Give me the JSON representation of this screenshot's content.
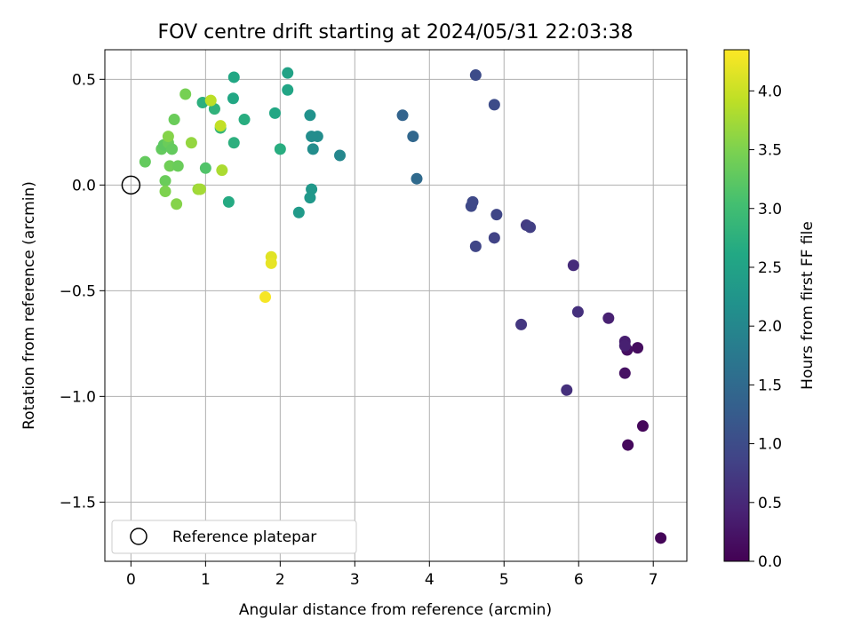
{
  "chart_data": {
    "type": "scatter",
    "title": "FOV centre drift starting at 2024/05/31 22:03:38",
    "xlabel": "Angular distance from reference (arcmin)",
    "ylabel": "Rotation from reference (arcmin)",
    "xlim": [
      -0.35,
      7.45
    ],
    "ylim": [
      -1.78,
      0.64
    ],
    "xticks": [
      0,
      1,
      2,
      3,
      4,
      5,
      6,
      7
    ],
    "yticks": [
      0.5,
      0.0,
      -0.5,
      -1.0,
      -1.5
    ],
    "xtick_labels": [
      "0",
      "1",
      "2",
      "3",
      "4",
      "5",
      "6",
      "7"
    ],
    "ytick_labels": [
      "0.5",
      "0.0",
      "−0.5",
      "−1.0",
      "−1.5"
    ],
    "grid": true,
    "colormap": "viridis",
    "colorbar": {
      "label": "Hours from first FF file",
      "range": [
        0.0,
        4.35
      ],
      "ticks": [
        0.0,
        0.5,
        1.0,
        1.5,
        2.0,
        2.5,
        3.0,
        3.5,
        4.0
      ],
      "tick_labels": [
        "0.0",
        "0.5",
        "1.0",
        "1.5",
        "2.0",
        "2.5",
        "3.0",
        "3.5",
        "4.0"
      ]
    },
    "reference": {
      "label": "Reference platepar",
      "x": 0.0,
      "y": 0.0
    },
    "legend_position": "lower-left",
    "points": [
      {
        "x": 7.1,
        "y": -1.67,
        "c": 0.05
      },
      {
        "x": 6.86,
        "y": -1.14,
        "c": 0.08
      },
      {
        "x": 6.66,
        "y": -1.23,
        "c": 0.1
      },
      {
        "x": 6.79,
        "y": -0.77,
        "c": 0.15
      },
      {
        "x": 6.65,
        "y": -0.78,
        "c": 0.18
      },
      {
        "x": 6.62,
        "y": -0.89,
        "c": 0.2
      },
      {
        "x": 6.62,
        "y": -0.74,
        "c": 0.35
      },
      {
        "x": 6.62,
        "y": -0.76,
        "c": 0.38
      },
      {
        "x": 6.4,
        "y": -0.63,
        "c": 0.4
      },
      {
        "x": 5.93,
        "y": -0.38,
        "c": 0.55
      },
      {
        "x": 5.99,
        "y": -0.6,
        "c": 0.6
      },
      {
        "x": 5.84,
        "y": -0.97,
        "c": 0.6
      },
      {
        "x": 5.23,
        "y": -0.66,
        "c": 0.7
      },
      {
        "x": 5.3,
        "y": -0.19,
        "c": 0.75
      },
      {
        "x": 5.35,
        "y": -0.2,
        "c": 0.8
      },
      {
        "x": 4.87,
        "y": -0.25,
        "c": 0.85
      },
      {
        "x": 4.9,
        "y": -0.14,
        "c": 0.9
      },
      {
        "x": 4.62,
        "y": -0.29,
        "c": 0.9
      },
      {
        "x": 4.56,
        "y": -0.1,
        "c": 0.95
      },
      {
        "x": 4.58,
        "y": -0.08,
        "c": 0.95
      },
      {
        "x": 4.62,
        "y": 0.52,
        "c": 1.0
      },
      {
        "x": 4.87,
        "y": 0.38,
        "c": 1.0
      },
      {
        "x": 3.64,
        "y": 0.33,
        "c": 1.4
      },
      {
        "x": 3.78,
        "y": 0.23,
        "c": 1.45
      },
      {
        "x": 3.83,
        "y": 0.03,
        "c": 1.5
      },
      {
        "x": 2.8,
        "y": 0.14,
        "c": 2.0
      },
      {
        "x": 2.5,
        "y": 0.23,
        "c": 2.1
      },
      {
        "x": 2.42,
        "y": 0.23,
        "c": 2.1
      },
      {
        "x": 2.44,
        "y": 0.17,
        "c": 2.1
      },
      {
        "x": 2.4,
        "y": 0.33,
        "c": 2.2
      },
      {
        "x": 2.42,
        "y": -0.02,
        "c": 2.3
      },
      {
        "x": 2.4,
        "y": -0.06,
        "c": 2.3
      },
      {
        "x": 2.25,
        "y": -0.13,
        "c": 2.35
      },
      {
        "x": 2.1,
        "y": 0.53,
        "c": 2.5
      },
      {
        "x": 2.1,
        "y": 0.45,
        "c": 2.55
      },
      {
        "x": 1.93,
        "y": 0.34,
        "c": 2.6
      },
      {
        "x": 2.0,
        "y": 0.17,
        "c": 2.7
      },
      {
        "x": 1.52,
        "y": 0.31,
        "c": 2.7
      },
      {
        "x": 1.38,
        "y": 0.51,
        "c": 2.6
      },
      {
        "x": 1.37,
        "y": 0.41,
        "c": 2.6
      },
      {
        "x": 1.38,
        "y": 0.2,
        "c": 2.75
      },
      {
        "x": 1.31,
        "y": -0.08,
        "c": 2.65
      },
      {
        "x": 1.12,
        "y": 0.36,
        "c": 2.8
      },
      {
        "x": 0.96,
        "y": 0.39,
        "c": 2.75
      },
      {
        "x": 1.2,
        "y": 0.27,
        "c": 2.85
      },
      {
        "x": 1.0,
        "y": 0.08,
        "c": 3.15
      },
      {
        "x": 0.19,
        "y": 0.11,
        "c": 3.3
      },
      {
        "x": 0.41,
        "y": 0.17,
        "c": 3.3
      },
      {
        "x": 0.44,
        "y": 0.19,
        "c": 3.25
      },
      {
        "x": 0.5,
        "y": 0.2,
        "c": 3.35
      },
      {
        "x": 0.55,
        "y": 0.17,
        "c": 3.3
      },
      {
        "x": 0.58,
        "y": 0.31,
        "c": 3.35
      },
      {
        "x": 0.73,
        "y": 0.43,
        "c": 3.45
      },
      {
        "x": 0.5,
        "y": 0.23,
        "c": 3.55
      },
      {
        "x": 0.52,
        "y": 0.09,
        "c": 3.4
      },
      {
        "x": 0.63,
        "y": 0.09,
        "c": 3.35
      },
      {
        "x": 0.46,
        "y": 0.02,
        "c": 3.35
      },
      {
        "x": 0.46,
        "y": -0.03,
        "c": 3.5
      },
      {
        "x": 0.61,
        "y": -0.09,
        "c": 3.55
      },
      {
        "x": 0.81,
        "y": 0.2,
        "c": 3.65
      },
      {
        "x": 0.9,
        "y": -0.02,
        "c": 3.7
      },
      {
        "x": 0.93,
        "y": -0.02,
        "c": 3.75
      },
      {
        "x": 1.22,
        "y": 0.07,
        "c": 3.8
      },
      {
        "x": 1.07,
        "y": 0.4,
        "c": 3.9
      },
      {
        "x": 1.2,
        "y": 0.28,
        "c": 3.95
      },
      {
        "x": 1.88,
        "y": -0.34,
        "c": 4.15
      },
      {
        "x": 1.88,
        "y": -0.37,
        "c": 4.2
      },
      {
        "x": 1.8,
        "y": -0.53,
        "c": 4.3
      }
    ]
  }
}
